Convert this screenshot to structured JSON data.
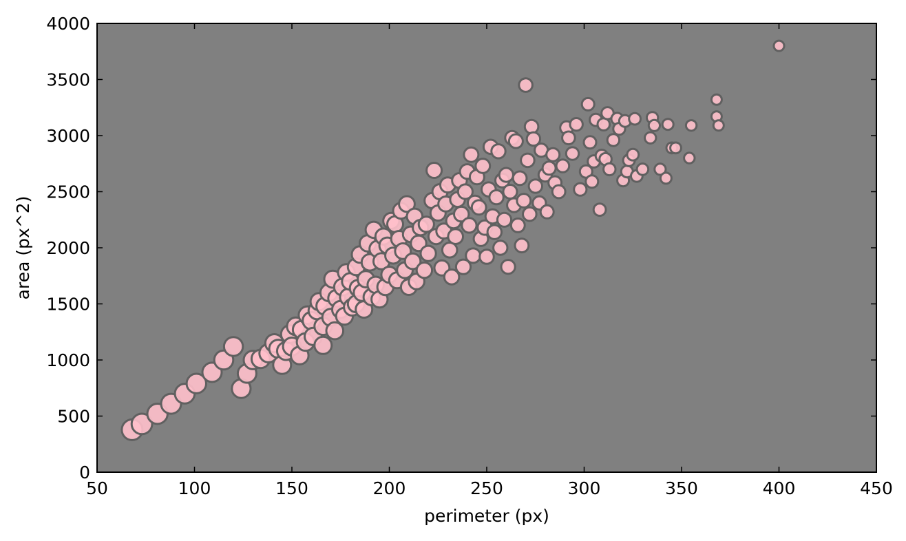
{
  "chart_data": {
    "type": "scatter",
    "title": "",
    "xlabel": "perimeter (px)",
    "ylabel": "area (px^2)",
    "xlim": [
      50,
      450
    ],
    "ylim": [
      0,
      4000
    ],
    "xticks": [
      50,
      100,
      150,
      200,
      250,
      300,
      350,
      400,
      450
    ],
    "yticks": [
      0,
      500,
      1000,
      1500,
      2000,
      2500,
      3000,
      3500,
      4000
    ],
    "plot_background": "#808080",
    "marker_color": "#ffc0cb",
    "marker_edge_color": "#606060",
    "grid": false,
    "size_note": "marker size decreases as perimeter increases",
    "points": [
      [
        68,
        378
      ],
      [
        73,
        430
      ],
      [
        81,
        520
      ],
      [
        88,
        610
      ],
      [
        95,
        700
      ],
      [
        101,
        790
      ],
      [
        109,
        890
      ],
      [
        115,
        1000
      ],
      [
        120,
        1120
      ],
      [
        124,
        745
      ],
      [
        127,
        880
      ],
      [
        130,
        1000
      ],
      [
        134,
        1010
      ],
      [
        138,
        1060
      ],
      [
        141,
        1150
      ],
      [
        143,
        1100
      ],
      [
        145,
        955
      ],
      [
        147,
        1080
      ],
      [
        149,
        1230
      ],
      [
        150,
        1120
      ],
      [
        152,
        1300
      ],
      [
        154,
        1040
      ],
      [
        155,
        1270
      ],
      [
        157,
        1160
      ],
      [
        158,
        1400
      ],
      [
        160,
        1350
      ],
      [
        161,
        1210
      ],
      [
        163,
        1440
      ],
      [
        164,
        1520
      ],
      [
        166,
        1300
      ],
      [
        166,
        1130
      ],
      [
        167,
        1480
      ],
      [
        169,
        1600
      ],
      [
        170,
        1380
      ],
      [
        171,
        1720
      ],
      [
        172,
        1260
      ],
      [
        173,
        1550
      ],
      [
        175,
        1450
      ],
      [
        176,
        1650
      ],
      [
        177,
        1390
      ],
      [
        178,
        1780
      ],
      [
        179,
        1560
      ],
      [
        180,
        1700
      ],
      [
        181,
        1470
      ],
      [
        183,
        1830
      ],
      [
        183,
        1500
      ],
      [
        184,
        1640
      ],
      [
        185,
        1940
      ],
      [
        186,
        1600
      ],
      [
        187,
        1450
      ],
      [
        188,
        1720
      ],
      [
        189,
        2040
      ],
      [
        190,
        1870
      ],
      [
        191,
        1560
      ],
      [
        192,
        2160
      ],
      [
        193,
        1670
      ],
      [
        194,
        1990
      ],
      [
        195,
        1540
      ],
      [
        196,
        1880
      ],
      [
        197,
        2100
      ],
      [
        198,
        1650
      ],
      [
        199,
        2020
      ],
      [
        200,
        1760
      ],
      [
        201,
        2240
      ],
      [
        202,
        1930
      ],
      [
        203,
        2210
      ],
      [
        204,
        1710
      ],
      [
        205,
        2080
      ],
      [
        206,
        2330
      ],
      [
        207,
        1970
      ],
      [
        208,
        1800
      ],
      [
        209,
        2390
      ],
      [
        210,
        1650
      ],
      [
        211,
        2120
      ],
      [
        212,
        1880
      ],
      [
        213,
        2280
      ],
      [
        214,
        1700
      ],
      [
        215,
        2040
      ],
      [
        216,
        2180
      ],
      [
        218,
        1800
      ],
      [
        219,
        2210
      ],
      [
        220,
        1950
      ],
      [
        222,
        2420
      ],
      [
        223,
        2690
      ],
      [
        224,
        2100
      ],
      [
        225,
        2310
      ],
      [
        226,
        2500
      ],
      [
        227,
        1820
      ],
      [
        228,
        2150
      ],
      [
        229,
        2390
      ],
      [
        230,
        2560
      ],
      [
        231,
        1980
      ],
      [
        232,
        1740
      ],
      [
        233,
        2240
      ],
      [
        234,
        2100
      ],
      [
        235,
        2430
      ],
      [
        236,
        2600
      ],
      [
        237,
        2300
      ],
      [
        238,
        1830
      ],
      [
        239,
        2500
      ],
      [
        240,
        2680
      ],
      [
        241,
        2200
      ],
      [
        242,
        2830
      ],
      [
        243,
        1930
      ],
      [
        244,
        2400
      ],
      [
        245,
        2630
      ],
      [
        246,
        2360
      ],
      [
        247,
        2080
      ],
      [
        248,
        2730
      ],
      [
        249,
        2180
      ],
      [
        250,
        1920
      ],
      [
        251,
        2520
      ],
      [
        252,
        2900
      ],
      [
        253,
        2280
      ],
      [
        254,
        2140
      ],
      [
        255,
        2450
      ],
      [
        256,
        2860
      ],
      [
        257,
        2000
      ],
      [
        258,
        2600
      ],
      [
        259,
        2250
      ],
      [
        260,
        2650
      ],
      [
        261,
        1830
      ],
      [
        262,
        2500
      ],
      [
        263,
        2980
      ],
      [
        264,
        2380
      ],
      [
        265,
        2950
      ],
      [
        266,
        2200
      ],
      [
        267,
        2620
      ],
      [
        268,
        2020
      ],
      [
        269,
        2420
      ],
      [
        270,
        3450
      ],
      [
        271,
        2780
      ],
      [
        272,
        2300
      ],
      [
        273,
        3080
      ],
      [
        274,
        2970
      ],
      [
        275,
        2550
      ],
      [
        277,
        2400
      ],
      [
        278,
        2870
      ],
      [
        280,
        2650
      ],
      [
        281,
        2320
      ],
      [
        282,
        2710
      ],
      [
        284,
        2830
      ],
      [
        285,
        2580
      ],
      [
        287,
        2500
      ],
      [
        289,
        2730
      ],
      [
        291,
        3070
      ],
      [
        292,
        2980
      ],
      [
        294,
        2840
      ],
      [
        296,
        3100
      ],
      [
        298,
        2520
      ],
      [
        301,
        2680
      ],
      [
        302,
        3280
      ],
      [
        303,
        2940
      ],
      [
        304,
        2590
      ],
      [
        305,
        2770
      ],
      [
        306,
        3140
      ],
      [
        308,
        2340
      ],
      [
        309,
        2820
      ],
      [
        310,
        3100
      ],
      [
        311,
        2790
      ],
      [
        312,
        3200
      ],
      [
        313,
        2700
      ],
      [
        315,
        2960
      ],
      [
        317,
        3150
      ],
      [
        318,
        3060
      ],
      [
        320,
        2600
      ],
      [
        321,
        3130
      ],
      [
        322,
        2680
      ],
      [
        323,
        2780
      ],
      [
        325,
        2830
      ],
      [
        326,
        3150
      ],
      [
        327,
        2640
      ],
      [
        330,
        2700
      ],
      [
        334,
        2980
      ],
      [
        335,
        3160
      ],
      [
        336,
        3090
      ],
      [
        339,
        2700
      ],
      [
        342,
        2620
      ],
      [
        343,
        3100
      ],
      [
        345,
        2890
      ],
      [
        347,
        2890
      ],
      [
        354,
        2800
      ],
      [
        355,
        3090
      ],
      [
        368,
        3320
      ],
      [
        368,
        3170
      ],
      [
        369,
        3090
      ],
      [
        400,
        3800
      ]
    ]
  }
}
